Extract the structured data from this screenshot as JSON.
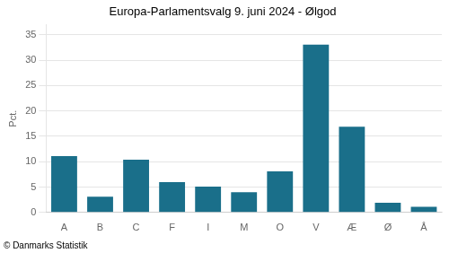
{
  "chart_data": {
    "type": "bar",
    "title": "Europa-Parlamentsvalg 9. juni 2024 - Ølgod",
    "categories": [
      "A",
      "B",
      "C",
      "F",
      "I",
      "M",
      "O",
      "V",
      "Æ",
      "Ø",
      "Å"
    ],
    "values": [
      11.1,
      3.1,
      10.4,
      6.0,
      5.1,
      4.0,
      8.1,
      33.1,
      16.9,
      1.9,
      1.1
    ],
    "color": "#1a6f8a",
    "ylabel": "Pct.",
    "footnote": "© Danmarks Statistik",
    "ylim": [
      0,
      37
    ],
    "yticks": [
      0,
      5,
      10,
      15,
      20,
      25,
      30,
      35
    ],
    "grid": true
  }
}
